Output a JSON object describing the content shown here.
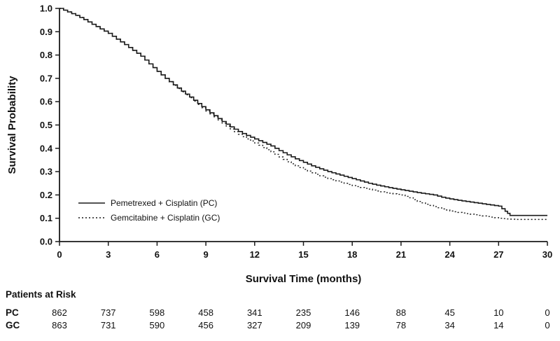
{
  "figure": {
    "background": "#ffffff",
    "line_color": "#1a1a1a"
  },
  "chart_data": {
    "type": "line",
    "subtype": "kaplan-meier-step",
    "title": "",
    "xlabel": "Survival Time (months)",
    "ylabel": "Survival Probability",
    "xlim": [
      0,
      30
    ],
    "ylim": [
      0.0,
      1.0
    ],
    "x_ticks": [
      0,
      3,
      6,
      9,
      12,
      15,
      18,
      21,
      24,
      27,
      30
    ],
    "y_ticks": [
      0.0,
      0.1,
      0.2,
      0.3,
      0.4,
      0.5,
      0.6,
      0.7,
      0.8,
      0.9,
      1.0
    ],
    "grid": false,
    "legend_position": "inside-lower-left",
    "series": [
      {
        "name": "Pemetrexed + Cisplatin (PC)",
        "style": "solid",
        "points": [
          [
            0,
            1.0
          ],
          [
            0.5,
            0.985
          ],
          [
            1,
            0.97
          ],
          [
            1.5,
            0.952
          ],
          [
            2,
            0.932
          ],
          [
            2.5,
            0.912
          ],
          [
            3,
            0.893
          ],
          [
            3.5,
            0.868
          ],
          [
            4,
            0.845
          ],
          [
            4.5,
            0.82
          ],
          [
            5,
            0.795
          ],
          [
            5.5,
            0.762
          ],
          [
            6,
            0.73
          ],
          [
            6.5,
            0.7
          ],
          [
            7,
            0.672
          ],
          [
            7.5,
            0.645
          ],
          [
            8,
            0.62
          ],
          [
            8.5,
            0.592
          ],
          [
            9,
            0.565
          ],
          [
            9.5,
            0.54
          ],
          [
            10,
            0.515
          ],
          [
            10.5,
            0.492
          ],
          [
            11,
            0.472
          ],
          [
            11.5,
            0.455
          ],
          [
            12,
            0.44
          ],
          [
            12.5,
            0.425
          ],
          [
            13,
            0.41
          ],
          [
            13.5,
            0.39
          ],
          [
            14,
            0.372
          ],
          [
            14.5,
            0.355
          ],
          [
            15,
            0.34
          ],
          [
            15.5,
            0.325
          ],
          [
            16,
            0.312
          ],
          [
            16.5,
            0.3
          ],
          [
            17,
            0.29
          ],
          [
            17.5,
            0.28
          ],
          [
            18,
            0.27
          ],
          [
            18.5,
            0.26
          ],
          [
            19,
            0.25
          ],
          [
            19.5,
            0.242
          ],
          [
            20,
            0.235
          ],
          [
            20.5,
            0.228
          ],
          [
            21,
            0.222
          ],
          [
            21.5,
            0.216
          ],
          [
            22,
            0.21
          ],
          [
            22.5,
            0.205
          ],
          [
            23,
            0.2
          ],
          [
            23.5,
            0.19
          ],
          [
            24,
            0.183
          ],
          [
            24.5,
            0.177
          ],
          [
            25,
            0.172
          ],
          [
            25.5,
            0.167
          ],
          [
            26,
            0.162
          ],
          [
            26.5,
            0.157
          ],
          [
            27,
            0.152
          ],
          [
            27.4,
            0.13
          ],
          [
            27.7,
            0.112
          ],
          [
            30,
            0.112
          ]
        ]
      },
      {
        "name": "Gemcitabine + Cisplatin (GC)",
        "style": "dotted",
        "points": [
          [
            0,
            1.0
          ],
          [
            0.5,
            0.985
          ],
          [
            1,
            0.97
          ],
          [
            1.5,
            0.952
          ],
          [
            2,
            0.932
          ],
          [
            2.5,
            0.912
          ],
          [
            3,
            0.893
          ],
          [
            3.5,
            0.868
          ],
          [
            4,
            0.845
          ],
          [
            4.5,
            0.82
          ],
          [
            5,
            0.795
          ],
          [
            5.5,
            0.762
          ],
          [
            6,
            0.73
          ],
          [
            6.5,
            0.7
          ],
          [
            7,
            0.67
          ],
          [
            7.5,
            0.642
          ],
          [
            8,
            0.617
          ],
          [
            8.5,
            0.588
          ],
          [
            9,
            0.56
          ],
          [
            9.5,
            0.535
          ],
          [
            10,
            0.508
          ],
          [
            10.5,
            0.483
          ],
          [
            11,
            0.46
          ],
          [
            11.5,
            0.44
          ],
          [
            12,
            0.423
          ],
          [
            12.5,
            0.403
          ],
          [
            13,
            0.385
          ],
          [
            13.5,
            0.363
          ],
          [
            14,
            0.342
          ],
          [
            14.5,
            0.325
          ],
          [
            15,
            0.31
          ],
          [
            15.5,
            0.295
          ],
          [
            16,
            0.282
          ],
          [
            16.5,
            0.27
          ],
          [
            17,
            0.26
          ],
          [
            17.5,
            0.25
          ],
          [
            18,
            0.24
          ],
          [
            18.5,
            0.232
          ],
          [
            19,
            0.225
          ],
          [
            19.5,
            0.217
          ],
          [
            20,
            0.21
          ],
          [
            20.5,
            0.205
          ],
          [
            21,
            0.2
          ],
          [
            21.5,
            0.188
          ],
          [
            22,
            0.172
          ],
          [
            22.5,
            0.16
          ],
          [
            23,
            0.15
          ],
          [
            23.5,
            0.14
          ],
          [
            24,
            0.131
          ],
          [
            24.5,
            0.125
          ],
          [
            25,
            0.12
          ],
          [
            25.5,
            0.115
          ],
          [
            26,
            0.11
          ],
          [
            26.5,
            0.105
          ],
          [
            27,
            0.1
          ],
          [
            27.5,
            0.097
          ],
          [
            28,
            0.095
          ],
          [
            30,
            0.095
          ]
        ]
      }
    ]
  },
  "risk_table": {
    "title": "Patients at Risk",
    "time_points": [
      0,
      3,
      6,
      9,
      12,
      15,
      18,
      21,
      24,
      27,
      30
    ],
    "rows": [
      {
        "label": "PC",
        "counts": [
          862,
          737,
          598,
          458,
          341,
          235,
          146,
          88,
          45,
          10,
          0
        ]
      },
      {
        "label": "GC",
        "counts": [
          863,
          731,
          590,
          456,
          327,
          209,
          139,
          78,
          34,
          14,
          0
        ]
      }
    ]
  }
}
